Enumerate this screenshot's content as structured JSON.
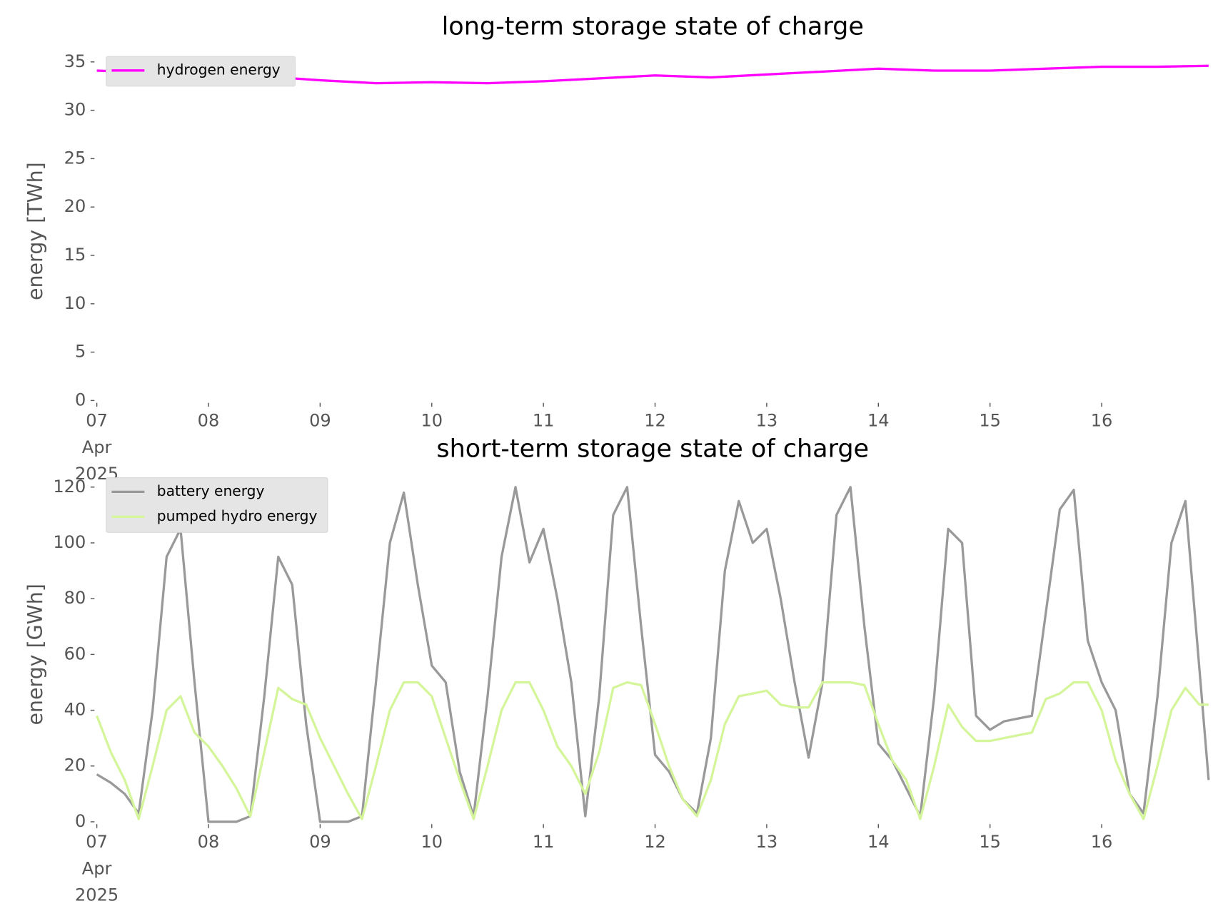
{
  "chart_data": [
    {
      "type": "line",
      "title": "long-term storage state of charge",
      "ylabel": "energy [TWh]",
      "x": [
        7,
        7.5,
        8,
        8.5,
        9,
        9.5,
        10,
        10.5,
        11,
        11.5,
        12,
        12.5,
        13,
        13.5,
        14,
        14.5,
        15,
        15.5,
        16,
        16.5,
        16.958
      ],
      "xlim": [
        7,
        16.958
      ],
      "xticks": [
        {
          "value": 7,
          "label": "07\nApr\n2025"
        },
        {
          "value": 8,
          "label": "08"
        },
        {
          "value": 9,
          "label": "09"
        },
        {
          "value": 10,
          "label": "10"
        },
        {
          "value": 11,
          "label": "11"
        },
        {
          "value": 12,
          "label": "12"
        },
        {
          "value": 13,
          "label": "13"
        },
        {
          "value": 14,
          "label": "14"
        },
        {
          "value": 15,
          "label": "15"
        },
        {
          "value": 16,
          "label": "16"
        }
      ],
      "ylim": [
        0,
        35
      ],
      "yticks": [
        0,
        5,
        10,
        15,
        20,
        25,
        30,
        35
      ],
      "legend": "upper left",
      "series": [
        {
          "name": "hydrogen energy",
          "color": "#ff00ff",
          "values": [
            34.1,
            33.9,
            33.7,
            33.5,
            33.1,
            32.8,
            32.9,
            32.8,
            33.0,
            33.3,
            33.6,
            33.4,
            33.7,
            34.0,
            34.3,
            34.1,
            34.1,
            34.3,
            34.5,
            34.5,
            34.6
          ]
        }
      ]
    },
    {
      "type": "line",
      "title": "short-term storage state of charge",
      "ylabel": "energy [GWh]",
      "x": [
        7,
        7.125,
        7.25,
        7.375,
        7.5,
        7.625,
        7.75,
        7.875,
        8,
        8.125,
        8.25,
        8.375,
        8.5,
        8.625,
        8.75,
        8.875,
        9,
        9.125,
        9.25,
        9.375,
        9.5,
        9.625,
        9.75,
        9.875,
        10,
        10.125,
        10.25,
        10.375,
        10.5,
        10.625,
        10.75,
        10.875,
        11,
        11.125,
        11.25,
        11.375,
        11.5,
        11.625,
        11.75,
        11.875,
        12,
        12.125,
        12.25,
        12.375,
        12.5,
        12.625,
        12.75,
        12.875,
        13,
        13.125,
        13.25,
        13.375,
        13.5,
        13.625,
        13.75,
        13.875,
        14,
        14.125,
        14.25,
        14.375,
        14.5,
        14.625,
        14.75,
        14.875,
        15,
        15.125,
        15.25,
        15.375,
        15.5,
        15.625,
        15.75,
        15.875,
        16,
        16.125,
        16.25,
        16.375,
        16.5,
        16.625,
        16.75,
        16.875,
        16.958
      ],
      "xlim": [
        7,
        16.958
      ],
      "xticks": [
        {
          "value": 7,
          "label": "07\nApr\n2025"
        },
        {
          "value": 8,
          "label": "08"
        },
        {
          "value": 9,
          "label": "09"
        },
        {
          "value": 10,
          "label": "10"
        },
        {
          "value": 11,
          "label": "11"
        },
        {
          "value": 12,
          "label": "12"
        },
        {
          "value": 13,
          "label": "13"
        },
        {
          "value": 14,
          "label": "14"
        },
        {
          "value": 15,
          "label": "15"
        },
        {
          "value": 16,
          "label": "16"
        }
      ],
      "ylim": [
        0,
        120
      ],
      "yticks": [
        0,
        20,
        40,
        60,
        80,
        100,
        120
      ],
      "legend": "upper left",
      "series": [
        {
          "name": "battery energy",
          "color": "#999999",
          "values": [
            17,
            14,
            10,
            3,
            40,
            95,
            105,
            50,
            0,
            0,
            0,
            2,
            45,
            95,
            85,
            35,
            0,
            0,
            0,
            2,
            50,
            100,
            118,
            85,
            56,
            50,
            18,
            2,
            45,
            95,
            120,
            93,
            105,
            80,
            50,
            2,
            45,
            110,
            120,
            70,
            24,
            18,
            8,
            3,
            30,
            90,
            115,
            100,
            105,
            80,
            50,
            23,
            50,
            110,
            120,
            70,
            28,
            22,
            12,
            2,
            45,
            105,
            100,
            38,
            33,
            36,
            37,
            38,
            75,
            112,
            119,
            65,
            50,
            40,
            10,
            3,
            45,
            100,
            115,
            55,
            15
          ]
        },
        {
          "name": "pumped hydro energy",
          "color": "#d4f59a",
          "values": [
            38,
            25,
            15,
            1,
            20,
            40,
            45,
            32,
            27,
            20,
            12,
            2,
            25,
            48,
            44,
            42,
            30,
            20,
            10,
            1,
            20,
            40,
            50,
            50,
            45,
            30,
            15,
            1,
            20,
            40,
            50,
            50,
            40,
            27,
            20,
            10,
            25,
            48,
            50,
            49,
            35,
            20,
            8,
            2,
            15,
            35,
            45,
            46,
            47,
            42,
            41,
            41,
            50,
            50,
            50,
            49,
            35,
            22,
            15,
            1,
            20,
            42,
            34,
            29,
            29,
            30,
            31,
            32,
            44,
            46,
            50,
            50,
            40,
            22,
            10,
            1,
            20,
            40,
            48,
            42,
            42
          ]
        }
      ]
    }
  ]
}
